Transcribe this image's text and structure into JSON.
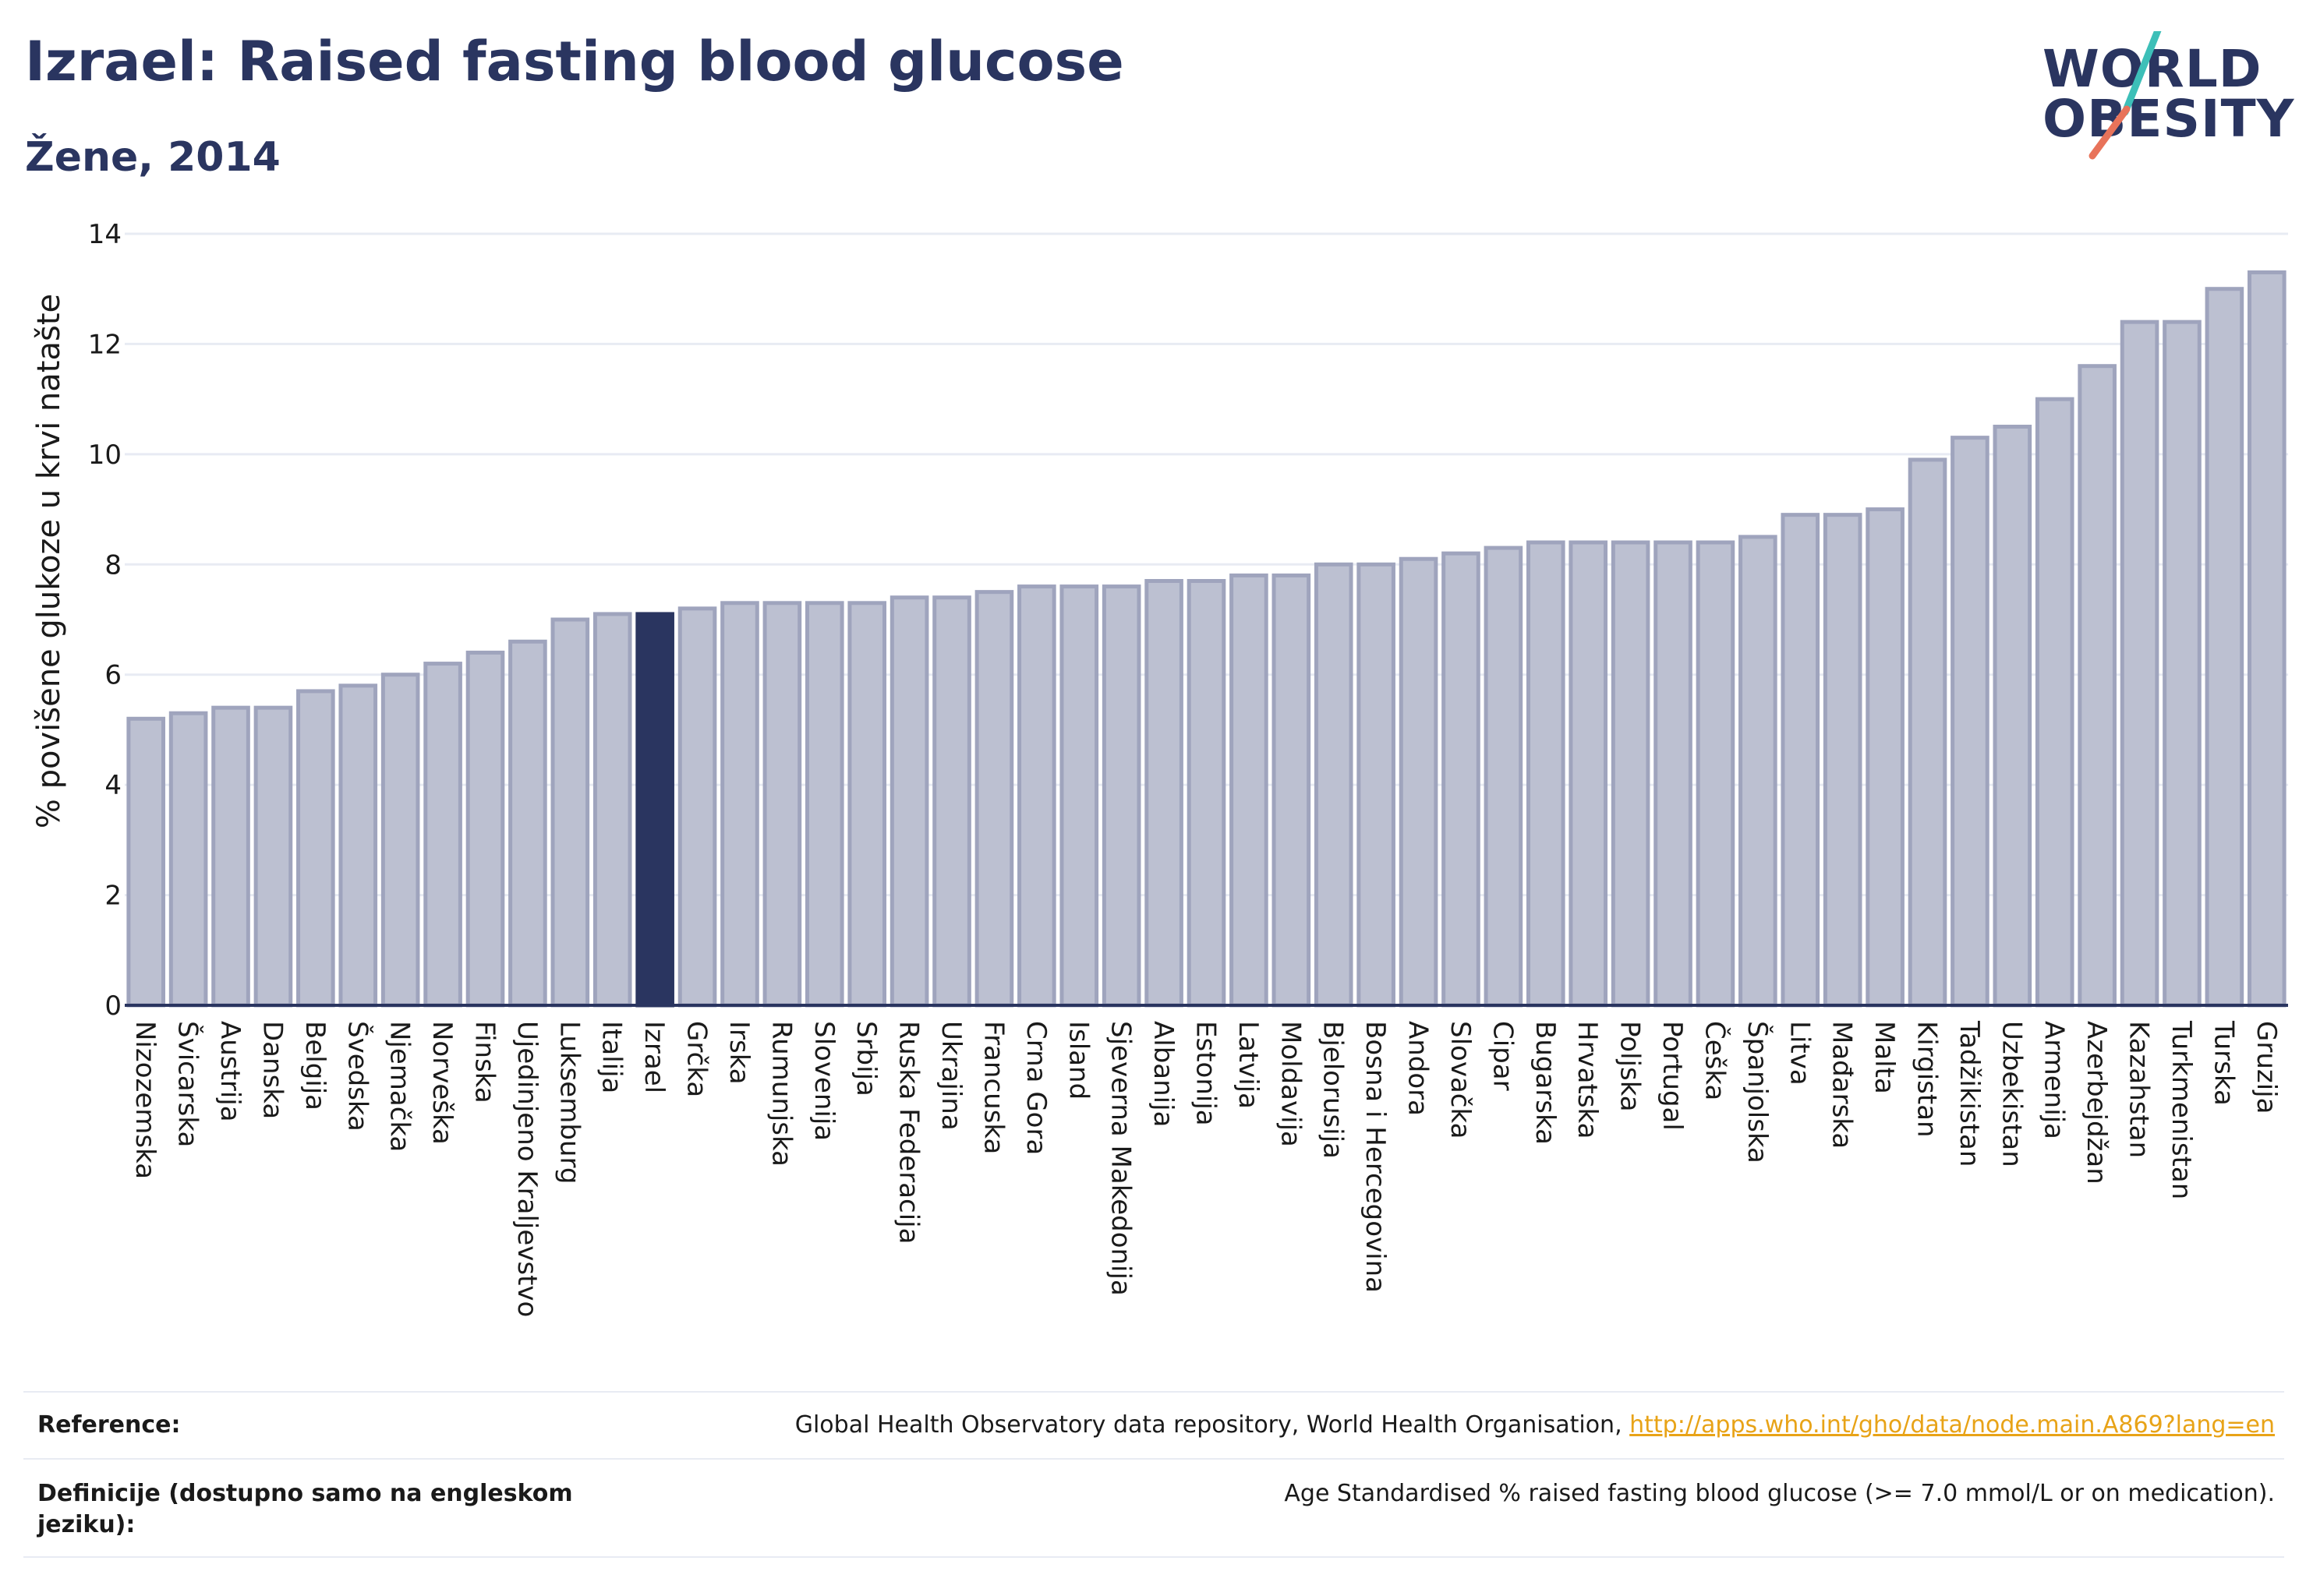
{
  "header": {
    "title": "Izrael: Raised fasting blood glucose",
    "subtitle": "Žene, 2014"
  },
  "logo": {
    "line1": "WORLD",
    "line2": "OBESITY",
    "colors": {
      "text": "#2a3560",
      "slash_top": "#3dbfb8",
      "slash_bottom": "#e8735a"
    }
  },
  "colors": {
    "bar": "#bcc0d1",
    "bar_stroke": "#9fa4bd",
    "highlight": "#2a3560",
    "axis": "#2a3560",
    "grid": "#e8ebf3"
  },
  "chart_data": {
    "type": "bar",
    "title": "Izrael: Raised fasting blood glucose",
    "subtitle": "Žene, 2014",
    "xlabel": "",
    "ylabel": "% povišene glukoze u krvi natašte",
    "ylim": [
      0,
      14
    ],
    "yticks": [
      0,
      2,
      4,
      6,
      8,
      10,
      12,
      14
    ],
    "grid": true,
    "highlight": "Izrael",
    "categories": [
      "Nizozemska",
      "Švicarska",
      "Austrija",
      "Danska",
      "Belgija",
      "Švedska",
      "Njemačka",
      "Norveška",
      "Finska",
      "Ujedinjeno Kraljevstvo",
      "Luksemburg",
      "Italija",
      "Izrael",
      "Grčka",
      "Irska",
      "Rumunjska",
      "Slovenija",
      "Srbija",
      "Ruska Federacija",
      "Ukrajina",
      "Francuska",
      "Crna Gora",
      "Island",
      "Sjeverna Makedonija",
      "Albanija",
      "Estonija",
      "Latvija",
      "Moldavija",
      "Bjelorusija",
      "Bosna i Hercegovina",
      "Andora",
      "Slovačka",
      "Cipar",
      "Bugarska",
      "Hrvatska",
      "Poljska",
      "Portugal",
      "Češka",
      "Španjolska",
      "Litva",
      "Mađarska",
      "Malta",
      "Kirgistan",
      "Tadžikistan",
      "Uzbekistan",
      "Armenija",
      "Azerbejdžan",
      "Kazahstan",
      "Turkmenistan",
      "Turska",
      "Gruzija"
    ],
    "values": [
      5.2,
      5.3,
      5.4,
      5.4,
      5.7,
      5.8,
      6.0,
      6.2,
      6.4,
      6.6,
      7.0,
      7.1,
      7.1,
      7.2,
      7.3,
      7.3,
      7.3,
      7.3,
      7.4,
      7.4,
      7.5,
      7.6,
      7.6,
      7.6,
      7.7,
      7.7,
      7.8,
      7.8,
      8.0,
      8.0,
      8.1,
      8.2,
      8.3,
      8.4,
      8.4,
      8.4,
      8.4,
      8.4,
      8.5,
      8.9,
      8.9,
      9.0,
      9.9,
      10.3,
      10.5,
      11.0,
      11.6,
      12.4,
      12.4,
      13.0,
      13.3
    ]
  },
  "footer": {
    "reference_label": "Reference:",
    "reference_text": "Global Health Observatory data repository, World Health Organisation, ",
    "reference_link": "http://apps.who.int/gho/data/node.main.A869?lang=en",
    "definition_label": "Definicije (dostupno samo na engleskom jeziku):",
    "definition_text": "Age Standardised % raised fasting blood glucose (>= 7.0 mmol/L or on medication)."
  }
}
